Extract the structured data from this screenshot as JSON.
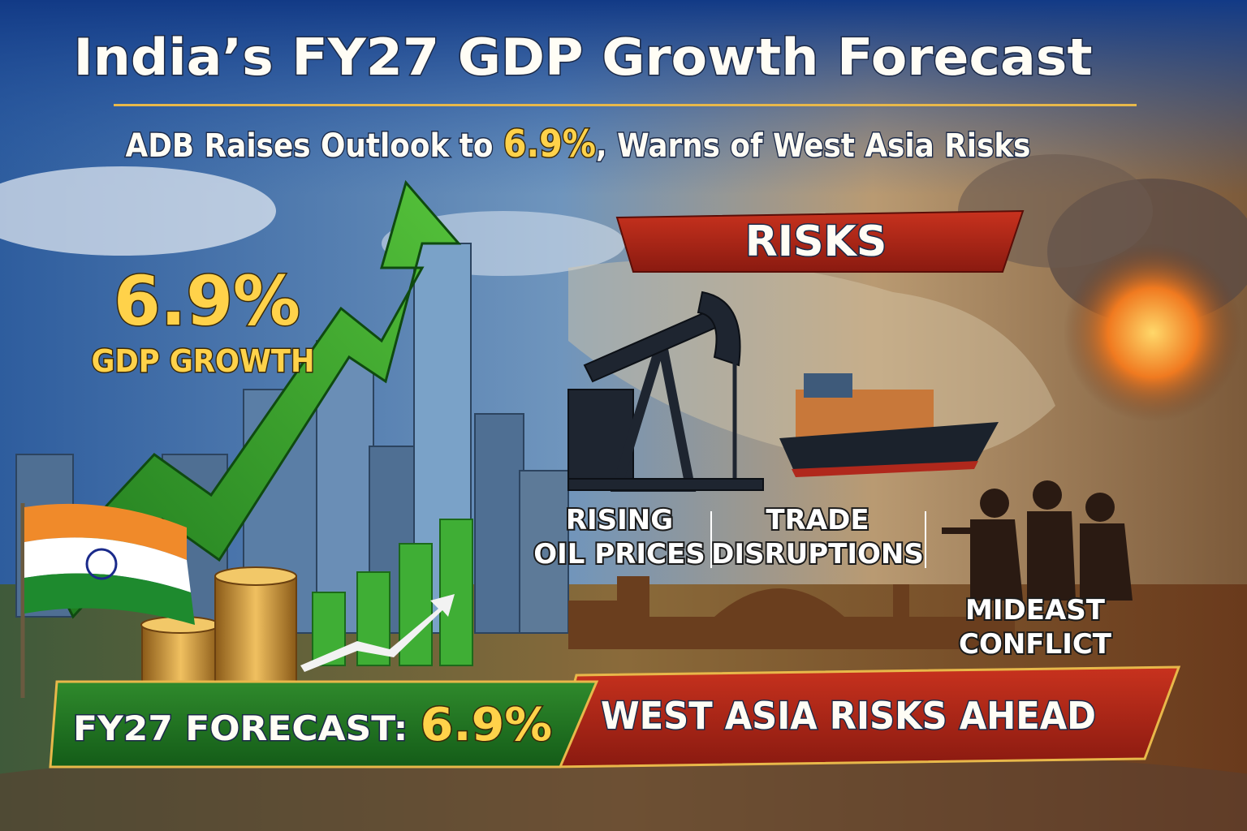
{
  "header": {
    "title": "India’s FY27 GDP Growth Forecast",
    "subtitle": {
      "before": "ADB Raises Outlook to ",
      "highlight": "6.9%",
      "after": ", Warns of West Asia Risks"
    }
  },
  "growth": {
    "value": "6.9%",
    "label": "GDP GROWTH"
  },
  "risks": {
    "heading": "RISKS",
    "items": [
      {
        "lines": [
          "RISING",
          "OIL PRICES"
        ]
      },
      {
        "lines": [
          "TRADE",
          "DISRUPTIONS"
        ]
      },
      {
        "lines": [
          "MIDEAST",
          "CONFLICT"
        ]
      }
    ]
  },
  "banners": {
    "forecast": {
      "label": "FY27 FORECAST:",
      "value": "6.9%"
    },
    "warning": "WEST ASIA RISKS AHEAD"
  }
}
